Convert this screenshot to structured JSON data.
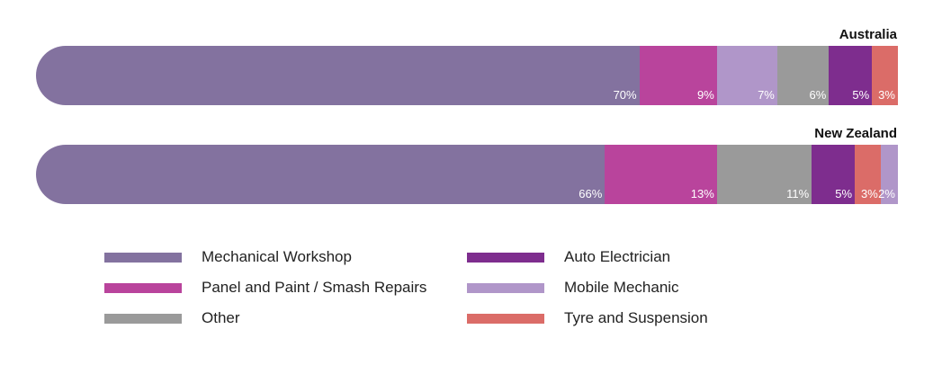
{
  "chart_data": {
    "type": "bar",
    "orientation": "horizontal",
    "stacked": true,
    "legend_placement": "bottom",
    "categories": [
      "Australia",
      "New Zealand"
    ],
    "series": [
      {
        "name": "Mechanical Workshop",
        "color": "#83729f"
      },
      {
        "name": "Panel and Paint / Smash Repairs",
        "color": "#b9449c"
      },
      {
        "name": "Other",
        "color": "#9a9a9a"
      },
      {
        "name": "Auto Electrician",
        "color": "#7e2d8e"
      },
      {
        "name": "Mobile Mechanic",
        "color": "#b096c9"
      },
      {
        "name": "Tyre and Suspension",
        "color": "#db6c68"
      }
    ],
    "bars": [
      {
        "country": "Australia",
        "segments": [
          {
            "series": "Mechanical Workshop",
            "value": 70,
            "label": "70%"
          },
          {
            "series": "Panel and Paint / Smash Repairs",
            "value": 9,
            "label": "9%"
          },
          {
            "series": "Mobile Mechanic",
            "value": 7,
            "label": "7%"
          },
          {
            "series": "Other",
            "value": 6,
            "label": "6%"
          },
          {
            "series": "Auto Electrician",
            "value": 5,
            "label": "5%"
          },
          {
            "series": "Tyre and Suspension",
            "value": 3,
            "label": "3%"
          }
        ]
      },
      {
        "country": "New Zealand",
        "segments": [
          {
            "series": "Mechanical Workshop",
            "value": 66,
            "label": "66%"
          },
          {
            "series": "Panel and Paint / Smash Repairs",
            "value": 13,
            "label": "13%"
          },
          {
            "series": "Other",
            "value": 11,
            "label": "11%"
          },
          {
            "series": "Auto Electrician",
            "value": 5,
            "label": "5%"
          },
          {
            "series": "Tyre and Suspension",
            "value": 3,
            "label": "3%"
          },
          {
            "series": "Mobile Mechanic",
            "value": 2,
            "label": "2%"
          }
        ]
      }
    ],
    "legend_columns": [
      [
        "Mechanical Workshop",
        "Panel and Paint / Smash Repairs",
        "Other"
      ],
      [
        "Auto Electrician",
        "Mobile Mechanic",
        "Tyre and Suspension"
      ]
    ]
  }
}
